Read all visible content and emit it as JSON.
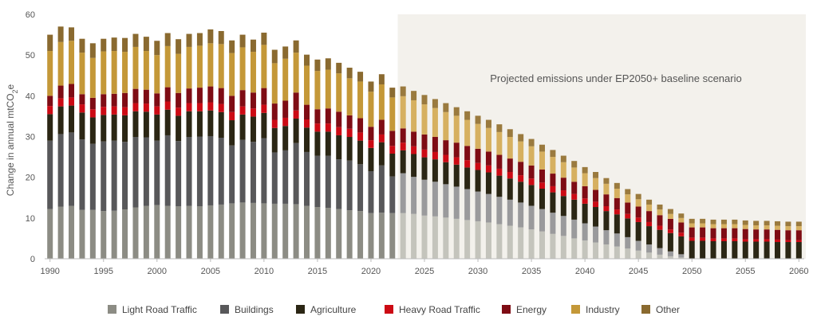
{
  "chart_data": {
    "type": "bar",
    "stacked": true,
    "ylabel_main": "Change in annual mtCO",
    "ylabel_sub": "2",
    "ylabel_suffix": "e",
    "ylim": [
      0,
      60
    ],
    "yticks": [
      "0",
      "10",
      "20",
      "30",
      "40",
      "50",
      "60"
    ],
    "xticks": [
      "1990",
      "1995",
      "2000",
      "2005",
      "2010",
      "2015",
      "2020",
      "2025",
      "2030",
      "2035",
      "2040",
      "2045",
      "2050",
      "2055",
      "2060"
    ],
    "grid": false,
    "legend_position": "bottom",
    "annotation": "Projected emissions under EP2050+ baseline scenario",
    "projection_start": 2023,
    "x": [
      1990,
      1991,
      1992,
      1993,
      1994,
      1995,
      1996,
      1997,
      1998,
      1999,
      2000,
      2001,
      2002,
      2003,
      2004,
      2005,
      2006,
      2007,
      2008,
      2009,
      2010,
      2011,
      2012,
      2013,
      2014,
      2015,
      2016,
      2017,
      2018,
      2019,
      2020,
      2021,
      2022,
      2023,
      2024,
      2025,
      2026,
      2027,
      2028,
      2029,
      2030,
      2031,
      2032,
      2033,
      2034,
      2035,
      2036,
      2037,
      2038,
      2039,
      2040,
      2041,
      2042,
      2043,
      2044,
      2045,
      2046,
      2047,
      2048,
      2049,
      2050,
      2051,
      2052,
      2053,
      2054,
      2055,
      2056,
      2057,
      2058,
      2059,
      2060
    ],
    "series": [
      {
        "name": "Light Road Traffic",
        "color": "#8c8c84",
        "projected_color": "#c4c4bc",
        "values": [
          12.2,
          12.8,
          13,
          12,
          12,
          11.7,
          11.8,
          12.1,
          12.6,
          13,
          13.2,
          13,
          12.9,
          13,
          12.9,
          13.1,
          13.3,
          13.6,
          13.8,
          13.7,
          13.6,
          13.5,
          13.5,
          13.4,
          13,
          12.7,
          12.5,
          12.2,
          11.9,
          11.7,
          11.2,
          11.3,
          11.2,
          11.2,
          11,
          10.6,
          10.4,
          10.1,
          9.8,
          9.5,
          9.2,
          8.9,
          8.5,
          8.1,
          7.7,
          7.2,
          6.7,
          6.1,
          5.6,
          5,
          4.5,
          4,
          3.5,
          3,
          2.5,
          2,
          1.5,
          1,
          0.6,
          0.3,
          0,
          0,
          0,
          0,
          0,
          0,
          0,
          0,
          0,
          0,
          0
        ]
      },
      {
        "name": "Buildings",
        "color": "#58585a",
        "projected_color": "#9a9a9c",
        "values": [
          16.8,
          17.8,
          18,
          17.3,
          16.2,
          17.1,
          17.2,
          16.6,
          17.3,
          16.8,
          15.8,
          17.3,
          16,
          16.9,
          17.1,
          17,
          16.4,
          14.2,
          15.4,
          15,
          16,
          12.6,
          13.1,
          15,
          13.2,
          12.6,
          12.8,
          12.2,
          12.2,
          11.5,
          10.3,
          11.6,
          9,
          9.8,
          9.1,
          8.8,
          8.5,
          8.2,
          7.9,
          7.6,
          7.3,
          7,
          6.7,
          6.4,
          6.1,
          5.8,
          5.5,
          5.2,
          4.9,
          4.6,
          4.2,
          3.9,
          3.5,
          3.2,
          2.8,
          2.4,
          2,
          1.6,
          1.2,
          0.8,
          0,
          0,
          0,
          0,
          0,
          0,
          0,
          0,
          0,
          0,
          0
        ]
      },
      {
        "name": "Agriculture",
        "color": "#2b2614",
        "projected_color": "#2b2614",
        "values": [
          6.5,
          6.8,
          6.6,
          6.6,
          6.5,
          6.5,
          6.4,
          6.5,
          6.3,
          6.3,
          6.4,
          6.3,
          6.2,
          6.3,
          6.2,
          6.3,
          6.3,
          6.2,
          6.2,
          6.2,
          6.2,
          6,
          6,
          6,
          6,
          5.9,
          5.9,
          5.9,
          5.8,
          5.8,
          5.7,
          5.7,
          5.6,
          5.6,
          5.6,
          5.5,
          5.5,
          5.4,
          5.4,
          5.3,
          5.3,
          5.3,
          5.2,
          5.2,
          5.1,
          5.1,
          5,
          5,
          4.9,
          4.9,
          4.8,
          4.8,
          4.7,
          4.7,
          4.6,
          4.6,
          4.5,
          4.5,
          4.5,
          4.4,
          4.4,
          4.4,
          4.3,
          4.3,
          4.3,
          4.2,
          4.2,
          4.2,
          4.1,
          4.1,
          4.1
        ]
      },
      {
        "name": "Heavy Road Traffic",
        "color": "#cc0a14",
        "projected_color": "#cc0a14",
        "values": [
          2,
          2,
          2,
          2,
          2,
          2,
          2,
          2,
          2,
          2,
          2,
          2,
          2,
          2,
          2,
          2,
          2,
          2,
          2,
          2,
          2,
          2,
          2,
          2,
          2,
          2,
          2,
          2,
          2,
          2,
          1.9,
          1.9,
          1.9,
          1.9,
          1.9,
          1.9,
          1.8,
          1.8,
          1.8,
          1.8,
          1.7,
          1.7,
          1.7,
          1.6,
          1.6,
          1.6,
          1.5,
          1.5,
          1.4,
          1.4,
          1.3,
          1.3,
          1.2,
          1.2,
          1.1,
          1.1,
          1,
          1,
          0.9,
          0.9,
          0.8,
          0.8,
          0.7,
          0.7,
          0.7,
          0.6,
          0.6,
          0.6,
          0.6,
          0.5,
          0.5
        ]
      },
      {
        "name": "Energy",
        "color": "#7e0c14",
        "projected_color": "#7e0c14",
        "values": [
          2.5,
          3.1,
          3.3,
          2.5,
          2.8,
          3.1,
          3.1,
          3.5,
          3.5,
          3.4,
          3.2,
          3.5,
          3.6,
          3.6,
          3.8,
          3.9,
          3.9,
          4,
          4,
          3.9,
          4.1,
          4,
          4.2,
          4.4,
          3.6,
          3.5,
          3.7,
          3.8,
          3.3,
          3.5,
          3.3,
          3.6,
          3.7,
          3.5,
          3.6,
          3.7,
          3.7,
          3.6,
          3.6,
          3.5,
          3.5,
          3.4,
          3.4,
          3.3,
          3.3,
          3.2,
          3.2,
          3.1,
          3.1,
          3,
          3,
          2.9,
          2.9,
          2.8,
          2.8,
          2.7,
          2.7,
          2.6,
          2.6,
          2.5,
          2.5,
          2.5,
          2.5,
          2.5,
          2.5,
          2.5,
          2.4,
          2.4,
          2.4,
          2.4,
          2.4
        ]
      },
      {
        "name": "Industry",
        "color": "#c49838",
        "projected_color": "#d6b060",
        "values": [
          11,
          10.7,
          10.6,
          10.2,
          9.8,
          10.5,
          10.5,
          10.1,
          10.3,
          9.5,
          9.4,
          10.1,
          9.6,
          10.2,
          10.3,
          10.6,
          10.8,
          10.5,
          10.5,
          10,
          10.6,
          9.9,
          10.3,
          9.8,
          9.6,
          9.4,
          9.5,
          9.4,
          9.1,
          9,
          8.6,
          8.7,
          8.2,
          7.9,
          7.7,
          7.4,
          7.1,
          6.9,
          6.6,
          6.4,
          6.1,
          5.8,
          5.6,
          5.3,
          5,
          4.7,
          4.4,
          4.1,
          3.8,
          3.5,
          3.2,
          2.9,
          2.6,
          2.3,
          2,
          1.8,
          1.6,
          1.4,
          1.2,
          1.1,
          1,
          1,
          1,
          1,
          1,
          1,
          1,
          1,
          1,
          1,
          1
        ]
      },
      {
        "name": "Other",
        "color": "#8a6a30",
        "projected_color": "#9a7a3e",
        "values": [
          4,
          3.8,
          3.3,
          3.4,
          3.6,
          3.1,
          3.3,
          3.4,
          3.2,
          3.5,
          3.5,
          3.2,
          3.6,
          3.2,
          3.1,
          3.4,
          3.2,
          3.1,
          3.1,
          3,
          3,
          3.3,
          3,
          3,
          2.7,
          2.8,
          2.8,
          2.6,
          2.6,
          2.4,
          2.5,
          2.5,
          2.4,
          2.4,
          2.3,
          2.3,
          2.2,
          2.2,
          2.1,
          2.1,
          2,
          2,
          1.9,
          1.9,
          1.8,
          1.8,
          1.7,
          1.7,
          1.6,
          1.6,
          1.5,
          1.5,
          1.4,
          1.4,
          1.3,
          1.3,
          1.2,
          1.2,
          1.2,
          1.1,
          1.1,
          1.1,
          1.1,
          1.1,
          1.1,
          1.1,
          1.1,
          1.1,
          1.1,
          1.1,
          1.1
        ]
      }
    ]
  }
}
